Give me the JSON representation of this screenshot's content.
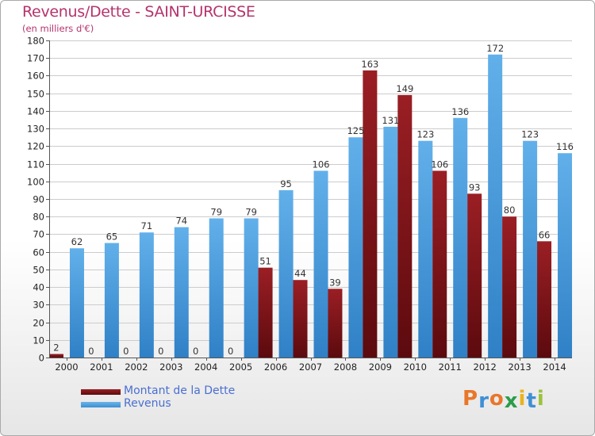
{
  "colors": {
    "title": "#b5336d",
    "dette_top": "#9a1f24",
    "dette_bottom": "#5c0a0e",
    "revenus_top": "#62b0ea",
    "revenus_bottom": "#2f80c6",
    "grid": "#cccccc"
  },
  "chart_data": {
    "type": "bar",
    "title": "Revenus/Dette - SAINT-URCISSE",
    "subtitle": "(en milliers d'€)",
    "categories": [
      "2000",
      "2001",
      "2002",
      "2003",
      "2004",
      "2005",
      "2006",
      "2007",
      "2008",
      "2009",
      "2010",
      "2011",
      "2012",
      "2013",
      "2014"
    ],
    "series": [
      {
        "name": "Montant de la Dette",
        "values": [
          2,
          0,
          0,
          0,
          0,
          0,
          51,
          44,
          39,
          163,
          149,
          106,
          93,
          80,
          66
        ]
      },
      {
        "name": "Revenus",
        "values": [
          62,
          65,
          71,
          74,
          79,
          79,
          95,
          106,
          125,
          131,
          123,
          136,
          172,
          123,
          116
        ]
      }
    ],
    "ylim": [
      0,
      180
    ],
    "yticks": [
      0,
      10,
      20,
      30,
      40,
      50,
      60,
      70,
      80,
      90,
      100,
      110,
      120,
      130,
      140,
      150,
      160,
      170,
      180
    ],
    "grid": true,
    "legend_position": "bottom-left"
  },
  "legend": {
    "items": [
      {
        "label": "Montant de la Dette"
      },
      {
        "label": "Revenus"
      }
    ]
  },
  "logo": {
    "text": "Proxiti"
  }
}
